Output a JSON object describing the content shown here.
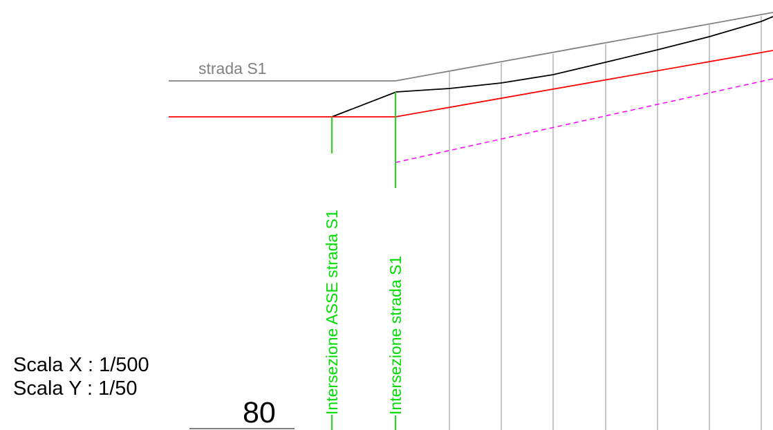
{
  "labels": {
    "road": "strada S1",
    "intersection_axis": "Intersezione ASSE strada S1",
    "intersection_road": "Intersezione strada S1",
    "scale_x": "Scala X : 1/500",
    "scale_y": "Scala Y : 1/50",
    "reference_level": "80"
  },
  "colors": {
    "road_line": "#808080",
    "terrain_profile": "#000000",
    "design_profile": "#ff0000",
    "offset_profile_dashed": "#ff00ff",
    "intersection_markers": "#00dd00",
    "section_lines": "#b4b4b4"
  }
}
